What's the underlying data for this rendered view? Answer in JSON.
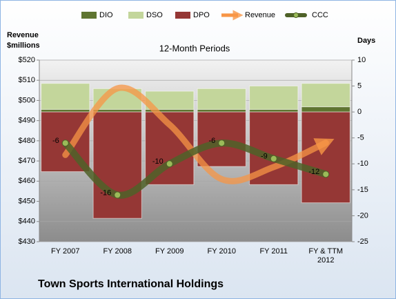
{
  "chart_data": {
    "type": "bar",
    "title": "Town Sports International Holdings",
    "subtitle": "12-Month Periods",
    "ylabel": [
      "Revenue",
      "$millions"
    ],
    "y2label": "Days",
    "categories": [
      "FY 2007",
      "FY 2008",
      "FY 2009",
      "FY 2010",
      "FY 2011",
      "FY & TTM 2012"
    ],
    "ylim": [
      430,
      520
    ],
    "yticks": [
      {
        "value": 430,
        "label": "$430"
      },
      {
        "value": 440,
        "label": "$440"
      },
      {
        "value": 450,
        "label": "$450"
      },
      {
        "value": 460,
        "label": "$460"
      },
      {
        "value": 470,
        "label": "$470"
      },
      {
        "value": 480,
        "label": "$480"
      },
      {
        "value": 490,
        "label": "$490"
      },
      {
        "value": 500,
        "label": "$500"
      },
      {
        "value": 510,
        "label": "$510"
      },
      {
        "value": 520,
        "label": "$520"
      }
    ],
    "y2lim": [
      -25,
      10
    ],
    "y2ticks": [
      -25,
      -20,
      -15,
      -10,
      -5,
      0,
      5,
      10
    ],
    "grid": true,
    "series": [
      {
        "name": "DIO",
        "type": "bar",
        "axis": "y2",
        "color": "#5f7530",
        "values": [
          0.5,
          0.5,
          0.5,
          0.5,
          0.5,
          1
        ]
      },
      {
        "name": "DSO",
        "type": "bar",
        "axis": "y2",
        "color": "#c3d69b",
        "values": [
          5,
          4,
          3.5,
          4,
          4.5,
          4.5
        ]
      },
      {
        "name": "DPO",
        "type": "bar",
        "axis": "y2",
        "color": "#953735",
        "values": [
          -11.5,
          -20.5,
          -14,
          -10.5,
          -14,
          -17.5
        ]
      },
      {
        "name": "Revenue",
        "type": "line",
        "axis": "y",
        "color": "#f79646",
        "values": [
          473,
          506,
          488,
          461,
          467,
          479
        ]
      },
      {
        "name": "CCC",
        "type": "line",
        "axis": "y2",
        "color": "#4f6228",
        "values": [
          -6,
          -16,
          -10,
          -6,
          -9,
          -12
        ]
      }
    ]
  }
}
